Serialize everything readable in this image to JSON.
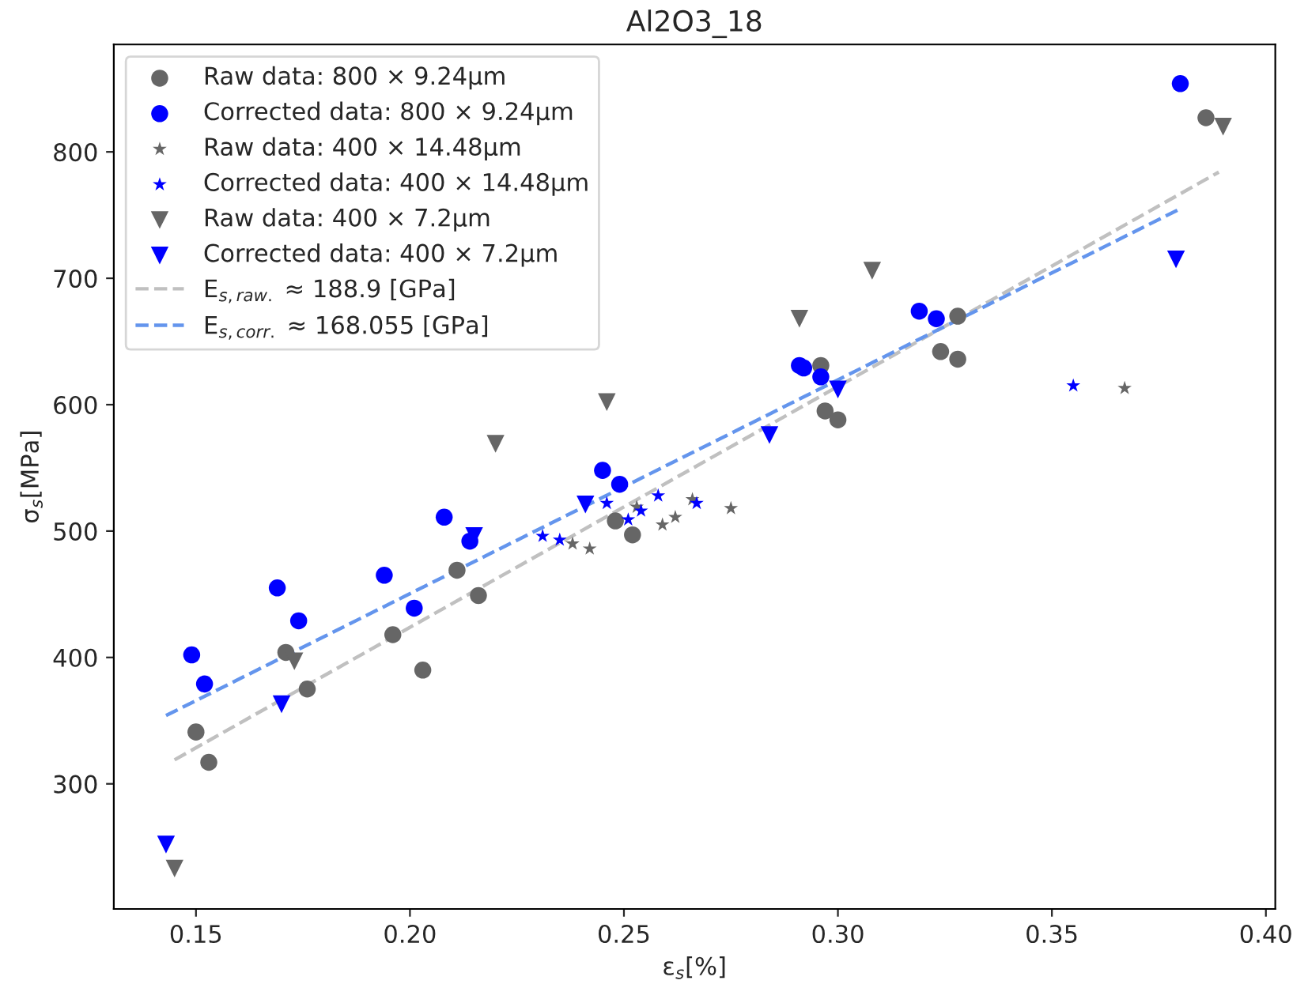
{
  "chart_data": {
    "type": "scatter",
    "title": "Al2O3_18",
    "xlabel": "ε$_{s}$[%]",
    "ylabel": "σ$_{s}$[MPa]",
    "xlim": [
      0.1308,
      0.4022
    ],
    "ylim": [
      201,
      885
    ],
    "xticks": [
      0.15,
      {
        "value": 0.2,
        "label": "0.20"
      },
      0.25,
      {
        "value": 0.3,
        "label": "0.30"
      },
      0.35,
      {
        "value": 0.4,
        "label": "0.40"
      }
    ],
    "yticks": [
      300,
      400,
      500,
      600,
      700,
      800
    ],
    "grid": false,
    "legend": "top left",
    "series": [
      {
        "name": "Raw data: 800 × 9.24μm",
        "color": "#666666",
        "marker": "circle",
        "x": [
          0.15,
          0.153,
          0.171,
          0.176,
          0.196,
          0.203,
          0.211,
          0.216,
          0.248,
          0.252,
          0.296,
          0.297,
          0.3,
          0.324,
          0.328,
          0.328,
          0.386
        ],
        "values": [
          341,
          317,
          404,
          375,
          418,
          390,
          469,
          449,
          508,
          497,
          631,
          595,
          588,
          642,
          670,
          636,
          827
        ]
      },
      {
        "name": "Corrected data: 800 × 9.24μm",
        "color": "#0000ff",
        "marker": "circle",
        "x": [
          0.149,
          0.152,
          0.169,
          0.174,
          0.194,
          0.201,
          0.208,
          0.214,
          0.245,
          0.249,
          0.291,
          0.292,
          0.296,
          0.319,
          0.323,
          0.38
        ],
        "values": [
          402,
          379,
          455,
          429,
          465,
          439,
          511,
          492,
          548,
          537,
          631,
          629,
          622,
          674,
          668,
          854
        ]
      },
      {
        "name": "Raw data: 400 × 14.48μm",
        "color": "#666666",
        "marker": "star",
        "x": [
          0.238,
          0.242,
          0.253,
          0.259,
          0.262,
          0.266,
          0.275,
          0.367
        ],
        "values": [
          490,
          486,
          519,
          505,
          511,
          525,
          518,
          613
        ]
      },
      {
        "name": "Corrected data: 400 × 14.48μm",
        "color": "#0000ff",
        "marker": "star",
        "x": [
          0.231,
          0.235,
          0.246,
          0.251,
          0.254,
          0.258,
          0.267,
          0.355
        ],
        "values": [
          496,
          493,
          522,
          509,
          516,
          528,
          522,
          615
        ]
      },
      {
        "name": "Raw data: 400 × 7.2μm",
        "color": "#666666",
        "marker": "triangle",
        "x": [
          0.145,
          0.173,
          0.22,
          0.246,
          0.291,
          0.308,
          0.39
        ],
        "values": [
          233,
          397,
          569,
          602,
          668,
          706,
          820
        ]
      },
      {
        "name": "Corrected data: 400 × 7.2μm",
        "color": "#0000ff",
        "marker": "triangle",
        "x": [
          0.143,
          0.17,
          0.215,
          0.241,
          0.284,
          0.3,
          0.379
        ],
        "values": [
          252,
          363,
          496,
          521,
          576,
          612,
          715
        ]
      },
      {
        "name": "E$_{s,raw.}$ ≈ 188.9 [GPa]",
        "type": "line",
        "line_style": "dashed",
        "color": "#c0c0c0",
        "x": [
          0.145,
          0.389
        ],
        "values": [
          319,
          784
        ]
      },
      {
        "name": "E$_{s,corr.}$ ≈ 168.055 [GPa]",
        "type": "line",
        "line_style": "dashed",
        "color": "#6495ed",
        "x": [
          0.143,
          0.38
        ],
        "values": [
          354,
          755
        ]
      }
    ]
  }
}
